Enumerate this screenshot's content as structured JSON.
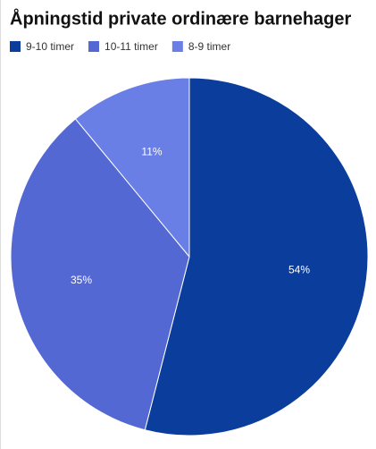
{
  "chart_data": {
    "type": "pie",
    "title": "Åpningstid private ordinære barnehager",
    "categories": [
      "9-10 timer",
      "10-11 timer",
      "8-9 timer"
    ],
    "values": [
      54,
      35,
      11
    ],
    "value_labels": [
      "54%",
      "35%",
      "11%"
    ],
    "colors": [
      "#0b3d9c",
      "#5468d4",
      "#6a7fe6"
    ],
    "legend": "top-left"
  }
}
